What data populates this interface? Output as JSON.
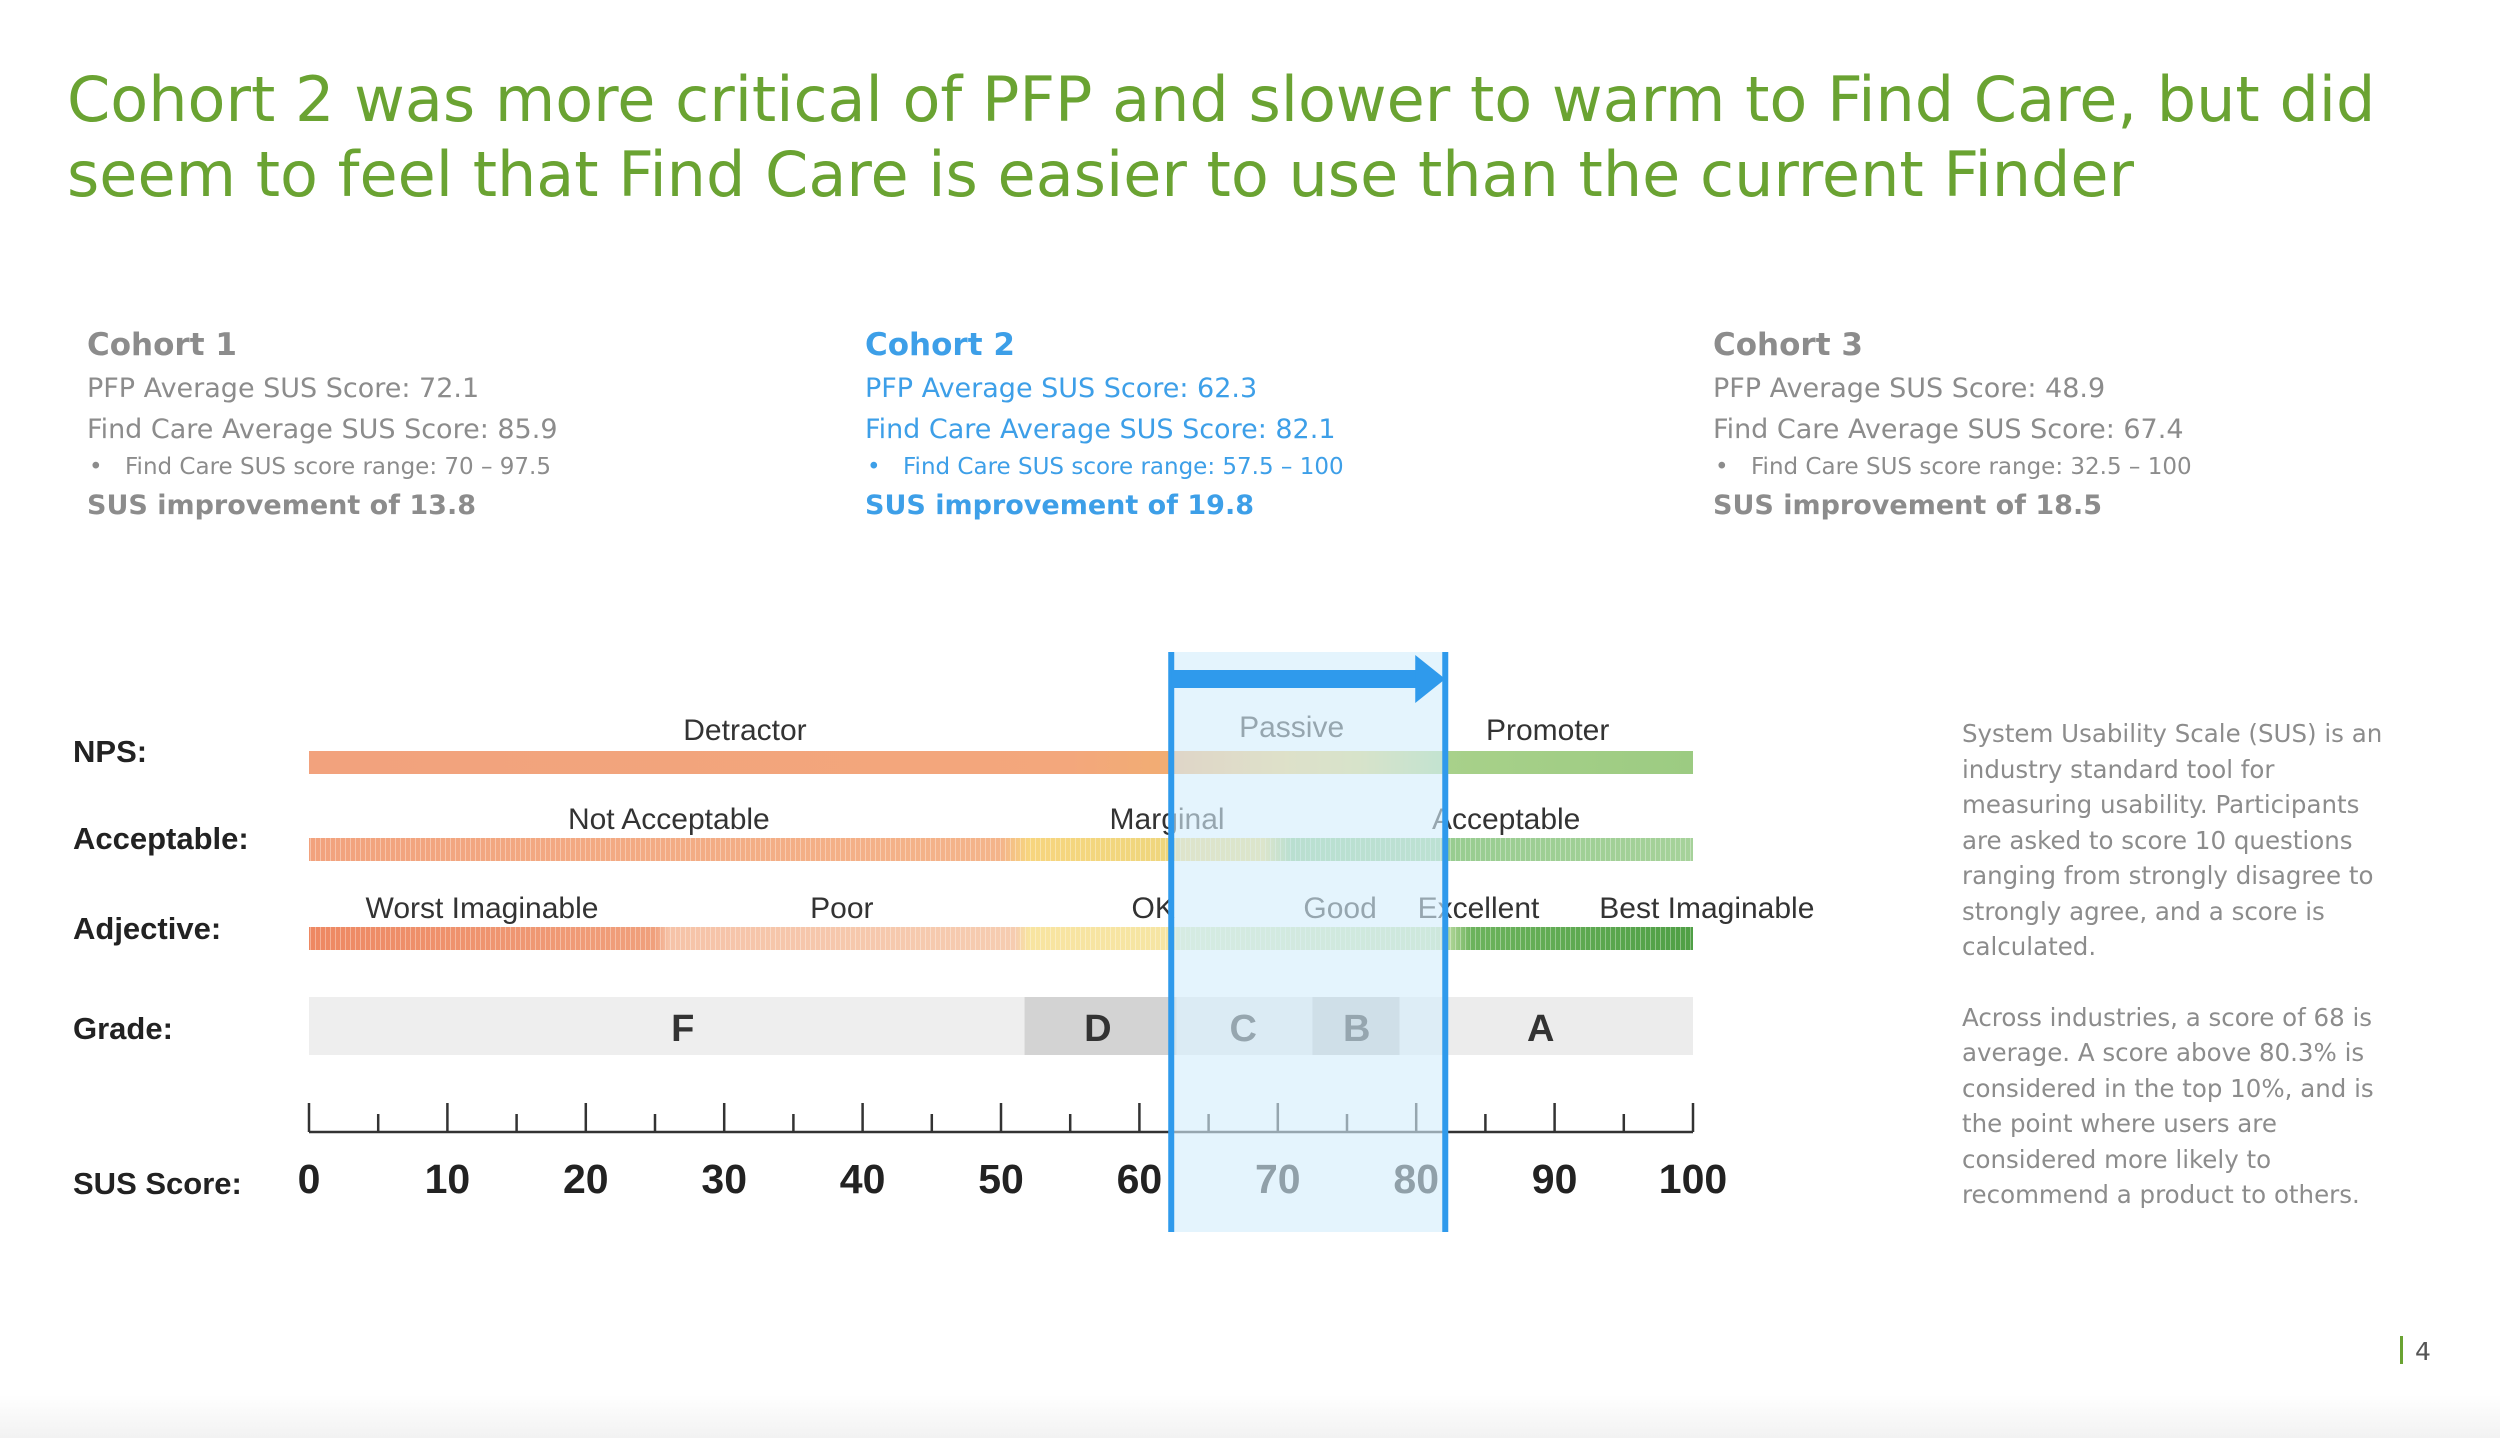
{
  "title": "Cohort 2 was more critical of PFP and slower to warm to Find Care, but did seem to feel that Find Care is easier to use than the current Finder",
  "cohorts": [
    {
      "name": "Cohort 1",
      "pfp": "PFP Average SUS Score: 72.1",
      "findcare": "Find Care Average SUS Score: 85.9",
      "range": "Find Care SUS score range: 70 – 97.5",
      "improvement": "SUS improvement of 13.8"
    },
    {
      "name": "Cohort 2",
      "pfp": "PFP Average SUS Score: 62.3",
      "findcare": "Find Care Average SUS Score: 82.1",
      "range": "Find Care SUS score range: 57.5 – 100",
      "improvement": "SUS improvement of 19.8"
    },
    {
      "name": "Cohort 3",
      "pfp": "PFP Average SUS Score: 48.9",
      "findcare": "Find Care Average SUS Score: 67.4",
      "range": "Find Care SUS score range: 32.5 – 100",
      "improvement": "SUS improvement of 18.5"
    }
  ],
  "bullet_char": "•",
  "colors": {
    "title_green": "#6aa332",
    "cohort_gray": "#8c8c8c",
    "cohort_highlight_blue": "#3d9fe8",
    "highlight_fill": "#d4edfb",
    "highlight_border": "#2f9aec"
  },
  "diagram": {
    "row_labels": {
      "nps": "NPS:",
      "acceptable": "Acceptable:",
      "adjective": "Adjective:",
      "grade": "Grade:",
      "sus": "SUS Score:"
    },
    "nps": [
      {
        "label": "Detractor",
        "from": 0,
        "to": 63
      },
      {
        "label": "Passive",
        "from": 63,
        "to": 79
      },
      {
        "label": "Promoter",
        "from": 79,
        "to": 100
      }
    ],
    "acceptable": [
      {
        "label": "Not Acceptable",
        "from": 0,
        "to": 52
      },
      {
        "label": "Marginal",
        "from": 52,
        "to": 70
      },
      {
        "label": "Acceptable",
        "from": 70,
        "to": 100
      }
    ],
    "adjective": [
      {
        "label": "Worst Imaginable",
        "at": 25
      },
      {
        "label": "Poor",
        "at": 38
      },
      {
        "label": "OK",
        "at": 61
      },
      {
        "label": "Good",
        "at": 74
      },
      {
        "label": "Excellent",
        "at": 84
      },
      {
        "label": "Best Imaginable",
        "at": 100
      }
    ],
    "grades": [
      {
        "label": "F",
        "from": 0,
        "to": 51.7
      },
      {
        "label": "D",
        "from": 51.7,
        "to": 62.7
      },
      {
        "label": "C",
        "from": 62.7,
        "to": 72.5
      },
      {
        "label": "B",
        "from": 72.5,
        "to": 78.8
      },
      {
        "label": "A",
        "from": 78.8,
        "to": 100
      }
    ],
    "sus_ticks": [
      "0",
      "10",
      "20",
      "30",
      "40",
      "50",
      "60",
      "70",
      "80",
      "90",
      "100"
    ],
    "highlight_range": [
      62.3,
      82.1
    ]
  },
  "sidebar": {
    "p1": "System Usability Scale (SUS) is an industry standard tool for measuring usability. Participants are asked to score 10 questions ranging from strongly disagree to strongly agree, and a score is calculated.",
    "p2": "Across industries, a score of 68 is average. A score above 80.3% is considered in the top 10%, and is the point where users are considered more likely to recommend a product to others."
  },
  "page_number": "4"
}
